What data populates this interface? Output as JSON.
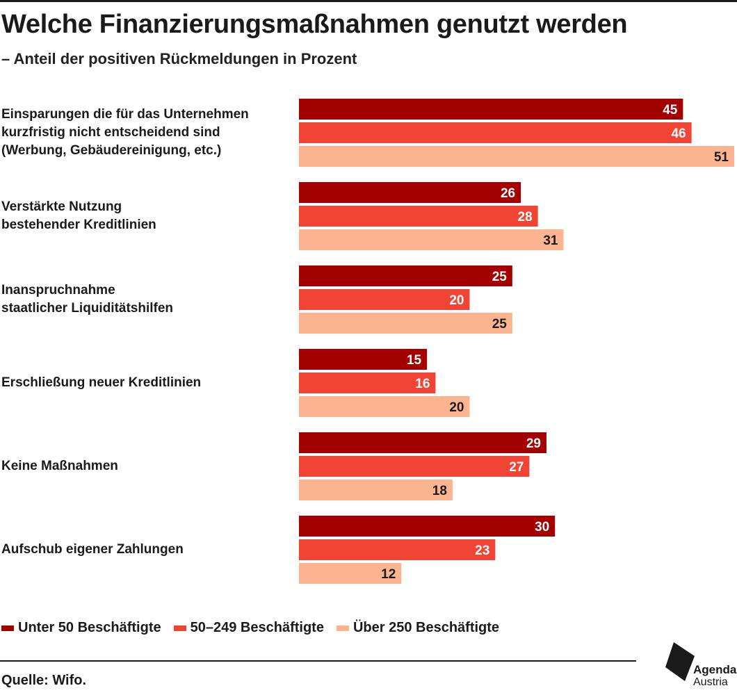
{
  "title": "Welche Finanzierungsmaßnahmen genutzt werden",
  "subtitle": "– Anteil der positiven Rückmeldungen in Prozent",
  "source": "Quelle: Wifo.",
  "logo": {
    "line1": "Agenda",
    "line2": "Austria",
    "icon": "agenda-austria-logo-icon"
  },
  "colors": {
    "series": [
      "#a30000",
      "#f04434",
      "#fdb491"
    ],
    "label_dark_bg": "#ffffff",
    "label_light_bg": "#1a1a1a"
  },
  "chart_data": {
    "type": "bar",
    "orientation": "horizontal",
    "title": "Welche Finanzierungsmaßnahmen genutzt werden",
    "subtitle": "– Anteil der positiven Rückmeldungen in Prozent",
    "categories": [
      "Einsparungen die für das Unternehmen kurzfristig nicht entscheidend sind (Werbung, Gebäudereinigung, etc.)",
      "Verstärkte Nutzung bestehender Kreditlinien",
      "Inanspruchnahme staatlicher Liquiditätshilfen",
      "Erschließung neuer Kreditlinien",
      "Keine Maßnahmen",
      "Aufschub eigener Zahlungen"
    ],
    "category_lines": [
      [
        "Einsparungen die für das Unternehmen",
        "kurzfristig nicht entscheidend sind",
        "(Werbung, Gebäudereinigung, etc.)"
      ],
      [
        "Verstärkte Nutzung",
        "bestehender Kreditlinien"
      ],
      [
        "Inanspruchnahme",
        "staatlicher Liquiditätshilfen"
      ],
      [
        "Erschließung neuer Kreditlinien"
      ],
      [
        "Keine Maßnahmen"
      ],
      [
        "Aufschub eigener Zahlungen"
      ]
    ],
    "series": [
      {
        "name": "Unter 50 Beschäftigte",
        "values": [
          45,
          26,
          25,
          15,
          29,
          30
        ]
      },
      {
        "name": "50–249 Beschäftigte",
        "values": [
          46,
          28,
          20,
          16,
          27,
          23
        ]
      },
      {
        "name": "Über 250 Beschäftigte",
        "values": [
          51,
          31,
          25,
          20,
          18,
          12
        ]
      }
    ],
    "xlim": [
      0,
      51
    ],
    "grid": false,
    "data_labels": true,
    "legend_position": "bottom-left"
  }
}
